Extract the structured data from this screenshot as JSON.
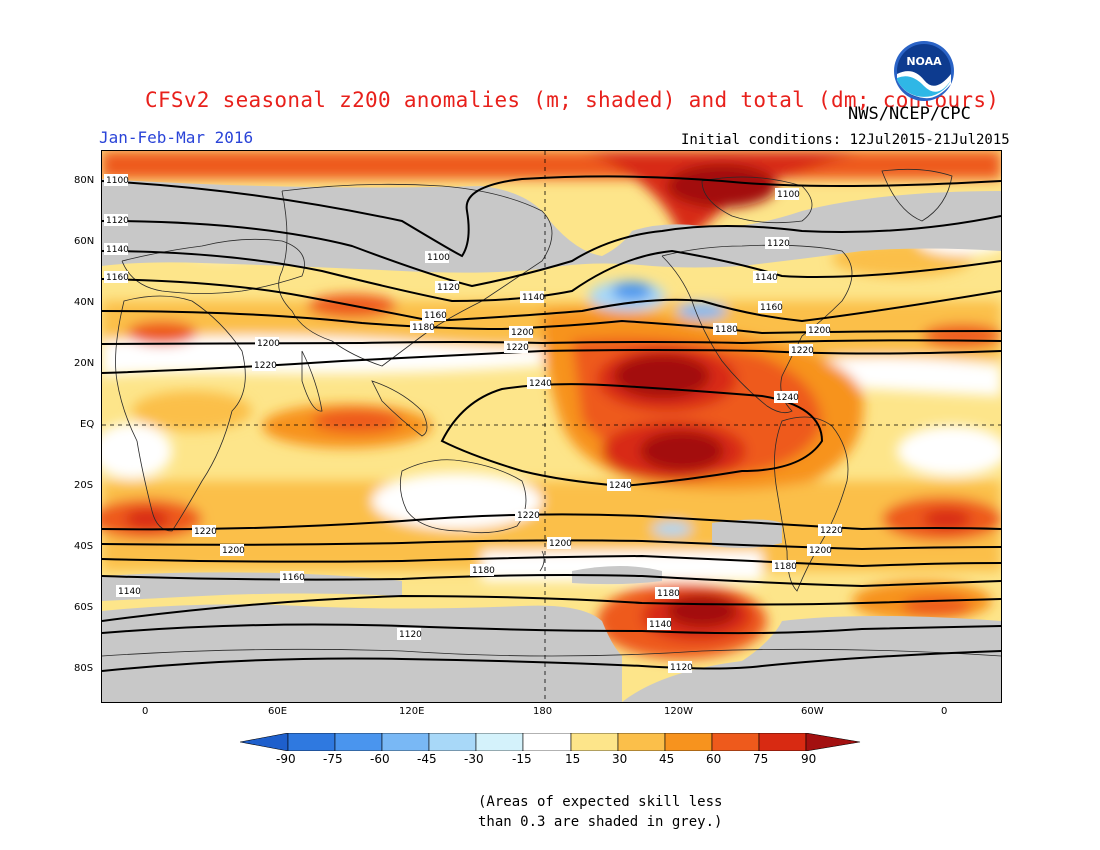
{
  "header": {
    "title": "CFSv2 seasonal z200 anomalies (m; shaded) and total (dm; contours)",
    "agency": "NWS/NCEP/CPC",
    "period": "Jan-Feb-Mar 2016",
    "initial_conditions": "Initial conditions: 12Jul2015-21Jul2015",
    "logo_text": "NOAA"
  },
  "map": {
    "projection": "equirectangular",
    "lat_ticks": [
      "80N",
      "60N",
      "40N",
      "20N",
      "EQ",
      "20S",
      "40S",
      "60S",
      "80S"
    ],
    "lon_ticks": [
      "0",
      "60E",
      "120E",
      "180",
      "120W",
      "60W",
      "0"
    ],
    "contour_labels": [
      "1100",
      "1120",
      "1140",
      "1160",
      "1180",
      "1200",
      "1220",
      "1240"
    ],
    "skill_mask_color": "#c8c8c8"
  },
  "legend": {
    "labels": [
      "-90",
      "-75",
      "-60",
      "-45",
      "-30",
      "-15",
      "15",
      "30",
      "45",
      "60",
      "75",
      "90"
    ],
    "colors": [
      "#1e5fcc",
      "#2f79e0",
      "#4a95ee",
      "#79b8f5",
      "#a8d8f8",
      "#d4f2fb",
      "#ffffff",
      "#fde58a",
      "#fbbf4a",
      "#f7931e",
      "#ee5a1c",
      "#d82a12",
      "#a31010"
    ]
  },
  "note": {
    "line1": "(Areas of expected skill less",
    "line2": "than 0.3 are shaded in grey.)"
  }
}
